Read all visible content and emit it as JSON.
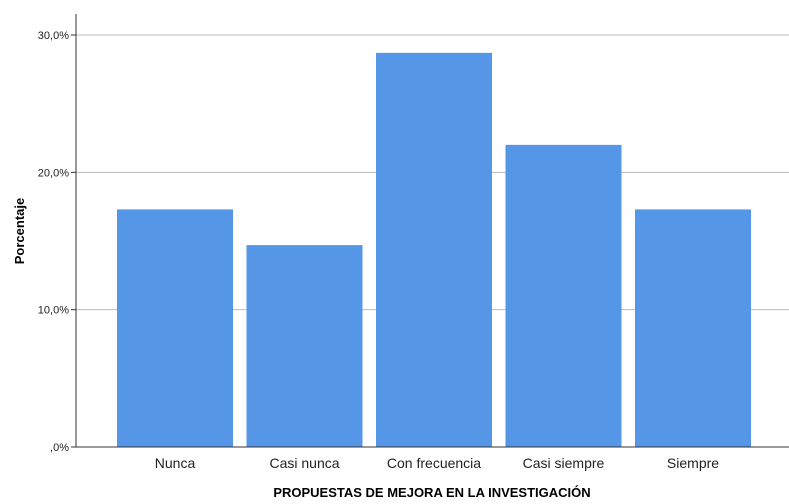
{
  "chart_data": {
    "type": "bar",
    "xlabel": "PROPUESTAS DE MEJORA EN LA INVESTIGACIÓN",
    "ylabel": "Porcentaje",
    "categories": [
      "Nunca",
      "Casi nunca",
      "Con frecuencia",
      "Casi siempre",
      "Siempre"
    ],
    "values": [
      17.3,
      14.7,
      28.7,
      22.0,
      17.3
    ],
    "ylim": [
      0,
      30
    ],
    "yticks": [
      0,
      10,
      20,
      30
    ],
    "ytick_labels": [
      ",0%",
      "10,0%",
      "20,0%",
      "30,0%"
    ],
    "grid": true,
    "bar_color": "#5596E6"
  }
}
